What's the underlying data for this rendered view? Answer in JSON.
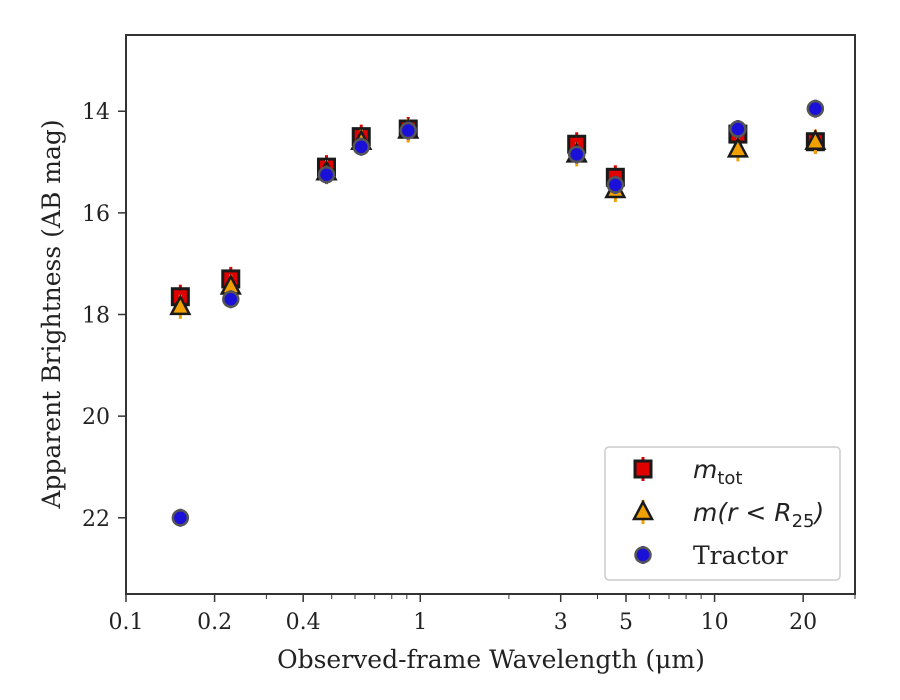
{
  "chart_data": {
    "type": "scatter",
    "xlabel": "Observed-frame Wavelength (μm)",
    "ylabel": "Apparent Brightness (AB mag)",
    "x_scale": "log",
    "xlim": [
      0.1,
      30
    ],
    "ylim": [
      23.5,
      12.5
    ],
    "y_inverted": true,
    "x_ticks": [
      {
        "value": 0.1,
        "label": "0.1"
      },
      {
        "value": 0.2,
        "label": "0.2"
      },
      {
        "value": 0.4,
        "label": "0.4"
      },
      {
        "value": 1,
        "label": "1"
      },
      {
        "value": 3,
        "label": "3"
      },
      {
        "value": 5,
        "label": "5"
      },
      {
        "value": 10,
        "label": "10"
      },
      {
        "value": 20,
        "label": "20"
      }
    ],
    "y_ticks": [
      {
        "value": 14,
        "label": "14"
      },
      {
        "value": 16,
        "label": "16"
      },
      {
        "value": 18,
        "label": "18"
      },
      {
        "value": 20,
        "label": "20"
      },
      {
        "value": 22,
        "label": "22"
      }
    ],
    "grid": false,
    "legend_position": "lower right",
    "series": [
      {
        "name": "m_tot",
        "marker": "square",
        "color": "#e00000",
        "edge_color": "#1a1a1a",
        "error_color": "#e00000",
        "points": [
          {
            "x": 0.153,
            "y": 17.65
          },
          {
            "x": 0.227,
            "y": 17.3
          },
          {
            "x": 0.48,
            "y": 15.1
          },
          {
            "x": 0.63,
            "y": 14.5
          },
          {
            "x": 0.91,
            "y": 14.35
          },
          {
            "x": 3.4,
            "y": 14.65
          },
          {
            "x": 4.6,
            "y": 15.3
          },
          {
            "x": 12.0,
            "y": 14.45
          },
          {
            "x": 22.0,
            "y": 14.6
          }
        ]
      },
      {
        "name": "m(r < R25)",
        "marker": "triangle",
        "color": "#f0a000",
        "edge_color": "#1a1a1a",
        "error_color": "#f0a000",
        "points": [
          {
            "x": 0.153,
            "y": 17.85
          },
          {
            "x": 0.227,
            "y": 17.45
          },
          {
            "x": 0.48,
            "y": 15.2
          },
          {
            "x": 0.63,
            "y": 14.6
          },
          {
            "x": 0.91,
            "y": 14.38
          },
          {
            "x": 3.4,
            "y": 14.85
          },
          {
            "x": 4.6,
            "y": 15.55
          },
          {
            "x": 12.0,
            "y": 14.75
          },
          {
            "x": 22.0,
            "y": 14.6
          }
        ]
      },
      {
        "name": "Tractor",
        "marker": "circle",
        "color": "#1a10d8",
        "edge_color": "#555555",
        "error_color": "#2a2ad8",
        "points": [
          {
            "x": 0.153,
            "y": 22.0
          },
          {
            "x": 0.227,
            "y": 17.7
          },
          {
            "x": 0.48,
            "y": 15.25
          },
          {
            "x": 0.63,
            "y": 14.7
          },
          {
            "x": 0.91,
            "y": 14.38
          },
          {
            "x": 3.4,
            "y": 14.85
          },
          {
            "x": 4.6,
            "y": 15.45
          },
          {
            "x": 12.0,
            "y": 14.35
          },
          {
            "x": 22.0,
            "y": 13.95
          }
        ]
      }
    ],
    "legend": [
      {
        "label": "m",
        "subscript": "tot",
        "marker": "square",
        "math": true
      },
      {
        "label": "m(r < R",
        "subscript": "25",
        "suffix": ")",
        "marker": "triangle",
        "math": true
      },
      {
        "label": "Tractor",
        "subscript": "",
        "marker": "circle",
        "math": false
      }
    ]
  }
}
